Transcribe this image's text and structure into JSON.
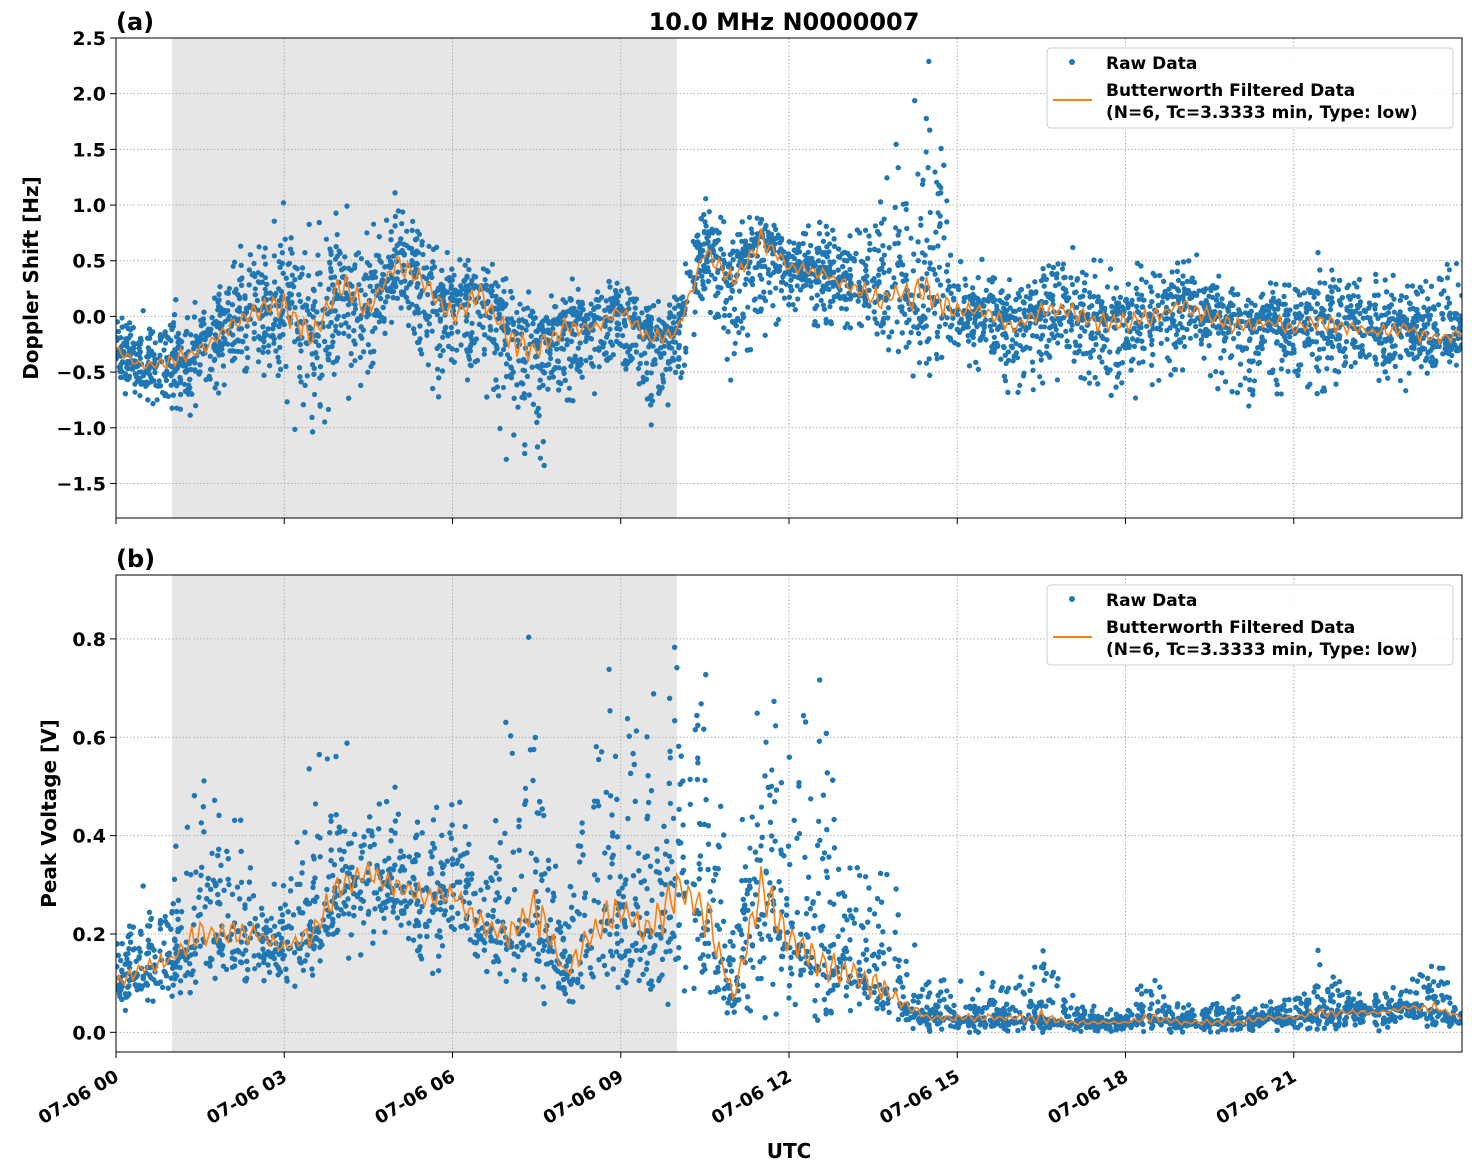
{
  "figure": {
    "title": "10.0 MHz N0000007",
    "xlabel": "UTC",
    "x_tick_labels": [
      "07-06 00",
      "07-06 03",
      "07-06 06",
      "07-06 09",
      "07-06 12",
      "07-06 15",
      "07-06 18",
      "07-06 21"
    ]
  },
  "colors": {
    "raw": "#1f77b4",
    "filtered": "#ff7f0e",
    "shade": "#e6e6e6",
    "grid": "#b0b0b0"
  },
  "chart_data": [
    {
      "type": "scatter",
      "panel_label": "(a)",
      "ylabel": "Doppler Shift [Hz]",
      "x_unit": "hours UTC on 07-06",
      "xlim": [
        0,
        24
      ],
      "ylim": [
        -1.81,
        2.5
      ],
      "x_ticks": [
        0,
        3,
        6,
        9,
        12,
        15,
        18,
        21
      ],
      "y_ticks": [
        -1.5,
        -1.0,
        -0.5,
        0.0,
        0.5,
        1.0,
        1.5,
        2.0,
        2.5
      ],
      "y_tick_labels": [
        "−1.5",
        "−1.0",
        "−0.5",
        "0.0",
        "0.5",
        "1.0",
        "1.5",
        "2.0",
        "2.5"
      ],
      "grid": true,
      "shaded_interval": [
        1.0,
        10.0
      ],
      "legend": {
        "placement": "top-right",
        "entries": [
          "Raw Data",
          "Butterworth Filtered Data",
          "(N=6, Tc=3.3333 min, Type: low)"
        ]
      },
      "x": [
        0,
        0.5,
        1,
        1.5,
        2,
        2.5,
        3,
        3.5,
        4,
        4.5,
        5,
        5.5,
        6,
        6.5,
        7,
        7.5,
        8,
        8.5,
        9,
        9.5,
        10,
        10.5,
        11,
        11.5,
        12,
        12.5,
        13,
        13.5,
        14,
        14.5,
        15,
        15.5,
        16,
        16.5,
        17,
        17.5,
        18,
        18.5,
        19,
        19.5,
        20,
        20.5,
        21,
        21.5,
        22,
        22.5,
        23,
        23.5,
        24
      ],
      "series": [
        {
          "name": "Butterworth Filtered Data",
          "kind": "line",
          "values": [
            -0.3,
            -0.45,
            -0.4,
            -0.3,
            -0.1,
            0.05,
            0.1,
            -0.2,
            0.3,
            0.05,
            0.5,
            0.3,
            0.0,
            0.2,
            -0.2,
            -0.3,
            -0.1,
            -0.1,
            0.05,
            -0.2,
            -0.15,
            0.6,
            0.3,
            0.7,
            0.45,
            0.4,
            0.3,
            0.15,
            0.2,
            0.2,
            0.05,
            0.05,
            -0.1,
            0.05,
            0.05,
            -0.05,
            -0.05,
            0.0,
            0.1,
            0.0,
            -0.1,
            -0.05,
            -0.1,
            -0.05,
            -0.1,
            -0.15,
            -0.1,
            -0.2,
            -0.15
          ]
        },
        {
          "name": "Raw Data",
          "kind": "scatter-envelope",
          "max": [
            0.1,
            0.05,
            0.15,
            0.15,
            0.5,
            0.8,
            1.05,
            0.9,
            1.05,
            0.8,
            1.3,
            0.9,
            0.5,
            0.7,
            0.3,
            0.2,
            0.35,
            0.3,
            0.35,
            0.1,
            0.2,
            1.15,
            0.8,
            0.95,
            0.8,
            0.85,
            0.8,
            1.3,
            1.6,
            2.3,
            0.6,
            0.5,
            0.4,
            0.55,
            0.65,
            0.5,
            0.5,
            0.55,
            0.65,
            0.5,
            0.35,
            0.3,
            0.4,
            0.6,
            0.3,
            0.45,
            0.3,
            0.5,
            0.55
          ],
          "min": [
            -0.65,
            -0.8,
            -0.9,
            -1.0,
            -0.7,
            -0.6,
            -0.9,
            -1.2,
            -0.8,
            -0.6,
            -0.3,
            -0.5,
            -1.0,
            -0.8,
            -1.6,
            -1.5,
            -1.0,
            -0.7,
            -0.6,
            -1.0,
            -0.7,
            0.0,
            -0.7,
            -0.2,
            0.0,
            -0.1,
            -0.2,
            -0.4,
            -0.55,
            -0.6,
            -0.4,
            -0.5,
            -0.8,
            -0.6,
            -0.55,
            -0.7,
            -0.9,
            -0.6,
            -0.5,
            -0.55,
            -0.95,
            -0.7,
            -0.7,
            -0.85,
            -0.6,
            -0.6,
            -0.85,
            -0.55,
            -0.5
          ]
        }
      ]
    },
    {
      "type": "scatter",
      "panel_label": "(b)",
      "ylabel": "Peak Voltage [V]",
      "x_unit": "hours UTC on 07-06",
      "xlim": [
        0,
        24
      ],
      "ylim": [
        -0.04,
        0.93
      ],
      "x_ticks": [
        0,
        3,
        6,
        9,
        12,
        15,
        18,
        21
      ],
      "y_ticks": [
        0.0,
        0.2,
        0.4,
        0.6,
        0.8
      ],
      "y_tick_labels": [
        "0.0",
        "0.2",
        "0.4",
        "0.6",
        "0.8"
      ],
      "grid": true,
      "shaded_interval": [
        1.0,
        10.0
      ],
      "legend": {
        "placement": "top-right",
        "entries": [
          "Raw Data",
          "Butterworth Filtered Data",
          "(N=6, Tc=3.3333 min, Type: low)"
        ]
      },
      "x": [
        0,
        0.5,
        1,
        1.5,
        2,
        2.5,
        3,
        3.5,
        4,
        4.5,
        5,
        5.5,
        6,
        6.5,
        7,
        7.5,
        8,
        8.5,
        9,
        9.5,
        10,
        10.5,
        11,
        11.5,
        12,
        12.5,
        13,
        13.5,
        14,
        14.5,
        15,
        15.5,
        16,
        16.5,
        17,
        17.5,
        18,
        18.5,
        19,
        19.5,
        20,
        20.5,
        21,
        21.5,
        22,
        22.5,
        23,
        23.5,
        24
      ],
      "series": [
        {
          "name": "Butterworth Filtered Data",
          "kind": "line",
          "values": [
            0.1,
            0.13,
            0.15,
            0.2,
            0.2,
            0.2,
            0.17,
            0.2,
            0.3,
            0.32,
            0.3,
            0.27,
            0.28,
            0.22,
            0.2,
            0.25,
            0.12,
            0.2,
            0.25,
            0.2,
            0.3,
            0.25,
            0.07,
            0.3,
            0.2,
            0.15,
            0.12,
            0.1,
            0.06,
            0.03,
            0.03,
            0.03,
            0.03,
            0.03,
            0.02,
            0.02,
            0.02,
            0.03,
            0.02,
            0.02,
            0.02,
            0.03,
            0.03,
            0.04,
            0.04,
            0.04,
            0.05,
            0.05,
            0.03
          ]
        },
        {
          "name": "Raw Data",
          "kind": "scatter-envelope",
          "max": [
            0.22,
            0.3,
            0.33,
            0.7,
            0.5,
            0.35,
            0.3,
            0.6,
            0.6,
            0.55,
            0.55,
            0.5,
            0.5,
            0.45,
            0.65,
            0.88,
            0.3,
            0.85,
            0.7,
            0.7,
            0.82,
            0.83,
            0.25,
            0.8,
            0.77,
            0.75,
            0.4,
            0.48,
            0.25,
            0.1,
            0.12,
            0.12,
            0.15,
            0.22,
            0.08,
            0.05,
            0.05,
            0.15,
            0.06,
            0.08,
            0.1,
            0.06,
            0.08,
            0.18,
            0.08,
            0.08,
            0.1,
            0.18,
            0.06
          ],
          "min": [
            0.04,
            0.05,
            0.06,
            0.07,
            0.07,
            0.08,
            0.09,
            0.1,
            0.15,
            0.15,
            0.14,
            0.12,
            0.12,
            0.1,
            0.08,
            0.06,
            0.04,
            0.05,
            0.04,
            0.05,
            0.06,
            0.04,
            0.02,
            0.03,
            0.03,
            0.02,
            0.02,
            0.01,
            0.01,
            0.0,
            0.0,
            0.0,
            0.0,
            0.0,
            0.0,
            0.0,
            0.0,
            0.0,
            0.0,
            0.0,
            0.0,
            0.0,
            0.0,
            0.0,
            0.0,
            0.0,
            0.0,
            0.0,
            0.0
          ]
        }
      ]
    }
  ]
}
